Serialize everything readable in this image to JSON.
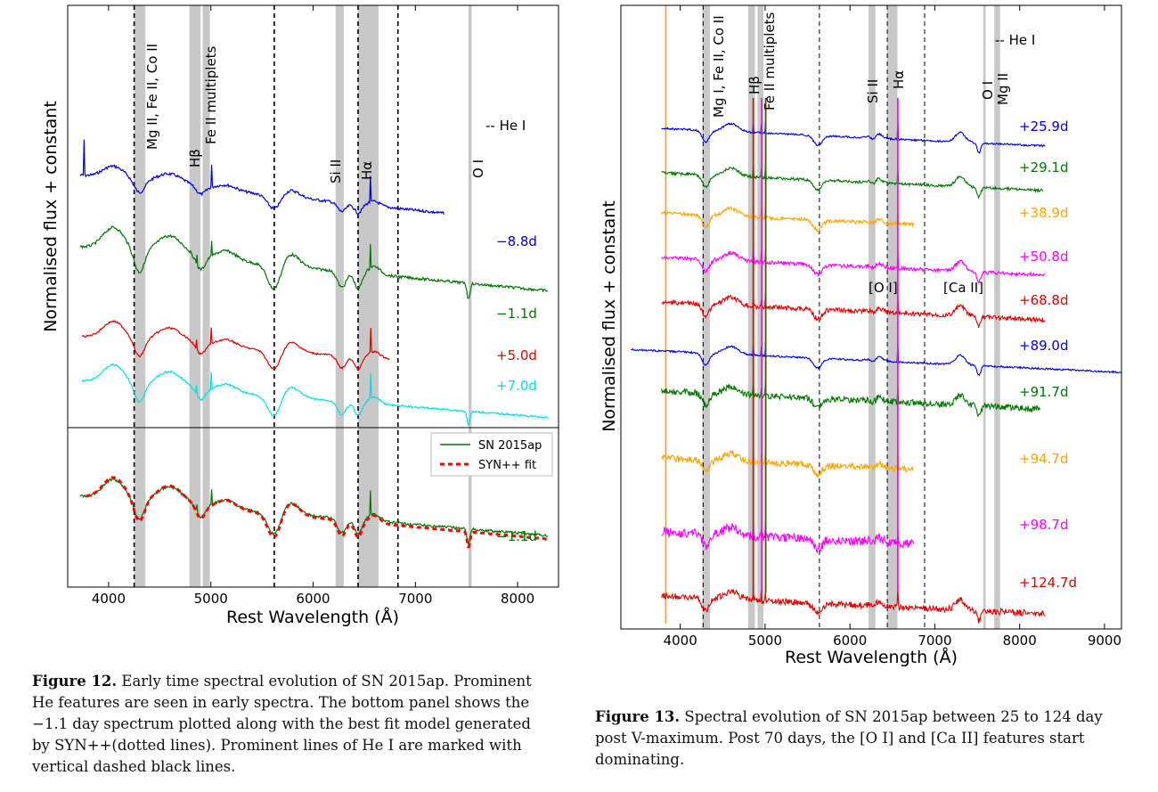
{
  "chart_data": [
    {
      "type": "line",
      "xlabel": "Rest Wavelength (Å)",
      "ylabel": "Normalised flux + constant",
      "xlim": [
        3600,
        8400
      ],
      "xticks": [
        4000,
        5000,
        6000,
        7000,
        8000
      ],
      "line_labels": {
        "heI": "-- He I",
        "mg": "Mg II, Fe II, Co II",
        "hb": "Hβ",
        "fe": "Fe II multiplets",
        "si": "Si II",
        "ha": "Hα",
        "oi": "O I"
      },
      "bands": [
        [
          4250,
          4360
        ],
        [
          4790,
          4900
        ],
        [
          4920,
          4990
        ],
        [
          6220,
          6300
        ],
        [
          6440,
          6640
        ],
        [
          7520,
          7550
        ]
      ],
      "he_lines": [
        4250,
        5620,
        6440,
        6830
      ],
      "series": [
        {
          "name": "−8.8d",
          "color": "#0000dd",
          "x_range": [
            3720,
            7280
          ]
        },
        {
          "name": "−1.1d",
          "color": "#007700",
          "x_range": [
            3720,
            8300
          ]
        },
        {
          "name": "+5.0d",
          "color": "#e00000",
          "x_range": [
            3740,
            6750
          ]
        },
        {
          "name": "+7.0d",
          "color": "#00e0e0",
          "x_range": [
            3740,
            8300
          ]
        }
      ],
      "bottom_panel": {
        "label": "−1.1d",
        "legend": [
          "SN 2015ap",
          "SYN++ fit"
        ],
        "series": [
          {
            "name": "SN 2015ap",
            "color": "#007700"
          },
          {
            "name": "SYN++ fit",
            "color": "#ff0000"
          }
        ]
      }
    },
    {
      "type": "line",
      "xlabel": "Rest Wavelength (Å)",
      "ylabel": "Normalised flux + constant",
      "xlim": [
        3300,
        9200
      ],
      "xticks": [
        4000,
        5000,
        6000,
        7000,
        8000,
        9000
      ],
      "line_labels": {
        "heI": "-- He I",
        "mg": "Mg I, Fe II, Co II",
        "hb": "Hβ",
        "fe": "Fe II multiplets",
        "si": "Si II",
        "ha": "Hα",
        "oi": "O I",
        "mgii": "Mg II",
        "ofor": "[O I]",
        "cafor": "[Ca II]"
      },
      "bands": [
        [
          4260,
          4350
        ],
        [
          4800,
          4880
        ],
        [
          4910,
          4980
        ],
        [
          6220,
          6300
        ],
        [
          6440,
          6560
        ],
        [
          7570,
          7600
        ],
        [
          7700,
          7770
        ]
      ],
      "he_lines": [
        4270,
        5640,
        6440,
        6880
      ],
      "series": [
        {
          "name": "+25.9d",
          "color": "#0000dd"
        },
        {
          "name": "+29.1d",
          "color": "#007700"
        },
        {
          "name": "+38.9d",
          "color": "#ffa500"
        },
        {
          "name": "+50.8d",
          "color": "#ff00ff"
        },
        {
          "name": "+68.8d",
          "color": "#e00000"
        },
        {
          "name": "+89.0d",
          "color": "#0000dd"
        },
        {
          "name": "+91.7d",
          "color": "#007700"
        },
        {
          "name": "+94.7d",
          "color": "#ffa500"
        },
        {
          "name": "+98.7d",
          "color": "#ff00ff"
        },
        {
          "name": "+124.7d",
          "color": "#e00000"
        }
      ]
    }
  ],
  "captions": {
    "fig12_label": "Figure 12.",
    "fig12_text": " Early time spectral evolution of SN 2015ap. Prominent He features are seen in early spectra. The bottom panel shows the −1.1 day spectrum plotted along with the best fit model generated by SYN++(dotted lines). Prominent lines of He I are marked with vertical dashed black lines.",
    "fig13_label": "Figure 13.",
    "fig13_text": " Spectral evolution of SN 2015ap between 25 to 124 day post V-maximum. Post 70 days, the [O I] and [Ca II] features start dominating."
  }
}
